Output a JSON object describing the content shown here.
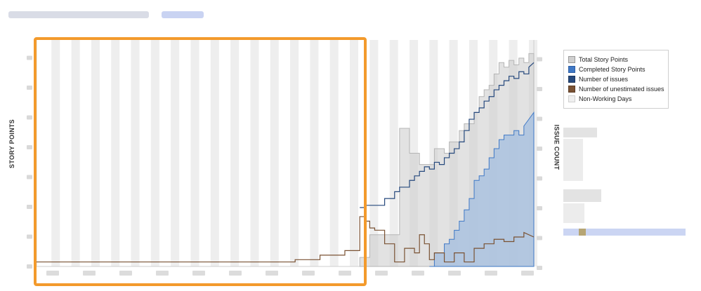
{
  "header": {
    "blurred_breadcrumb": "",
    "blurred_link": ""
  },
  "chart_data": {
    "type": "line",
    "title": "",
    "ylabel": "STORY POINTS",
    "y2label": "ISSUE COUNT",
    "xlabel": "",
    "grid": true,
    "legend_position": "right",
    "legend": [
      {
        "label": "Total Story Points",
        "color": "#cfcfcf"
      },
      {
        "label": "Completed Story Points",
        "color": "#3f78c5"
      },
      {
        "label": "Number of issues",
        "color": "#26497d"
      },
      {
        "label": "Number of unestimated issues",
        "color": "#7a5233"
      },
      {
        "label": "Non-Working Days",
        "color": "#f0f0f0"
      }
    ],
    "xlim": [
      0,
      100
    ],
    "ylim": [
      0,
      100
    ],
    "y2lim": [
      0,
      100
    ],
    "non_working_days": [
      3,
      7,
      11,
      15,
      19,
      23,
      27,
      31,
      35,
      39,
      43,
      47,
      51,
      55,
      59,
      63,
      67,
      71,
      75,
      79,
      83,
      87,
      91,
      95,
      99
    ],
    "series": [
      {
        "name": "Total Story Points",
        "type": "area",
        "color": "#cfcfcf",
        "x": [
          65,
          67,
          67,
          73,
          73,
          75,
          75,
          77,
          77,
          80,
          80,
          82,
          82,
          83,
          83,
          85,
          85,
          86,
          86,
          88,
          88,
          89,
          89,
          90,
          90,
          91,
          91,
          92,
          92,
          93,
          93,
          94,
          94,
          95,
          95,
          96,
          96,
          97,
          97,
          98,
          98,
          99,
          99,
          100
        ],
        "y": [
          4,
          4,
          14,
          14,
          61,
          61,
          50,
          50,
          45,
          45,
          52,
          52,
          50,
          50,
          55,
          55,
          60,
          60,
          63,
          63,
          68,
          68,
          75,
          75,
          78,
          78,
          80,
          80,
          85,
          85,
          90,
          90,
          88,
          88,
          91,
          91,
          89,
          89,
          92,
          92,
          90,
          90,
          94,
          94
        ]
      },
      {
        "name": "Completed Story Points",
        "type": "area",
        "color": "#a8c1e0",
        "x": [
          79,
          80,
          80,
          82,
          82,
          83,
          83,
          84,
          84,
          85,
          85,
          86,
          86,
          87,
          87,
          88,
          88,
          89,
          89,
          90,
          90,
          91,
          91,
          92,
          92,
          93,
          93,
          94,
          94,
          96,
          96,
          97,
          97,
          98,
          98,
          100
        ],
        "y": [
          0,
          0,
          6,
          6,
          10,
          10,
          12,
          12,
          16,
          16,
          20,
          20,
          25,
          25,
          30,
          30,
          38,
          38,
          40,
          40,
          43,
          43,
          48,
          48,
          52,
          52,
          56,
          56,
          58,
          58,
          60,
          60,
          58,
          58,
          62,
          68
        ]
      },
      {
        "name": "Number of issues",
        "type": "step",
        "color": "#26497d",
        "x": [
          65,
          66,
          66,
          70,
          70,
          72,
          72,
          73,
          73,
          75,
          75,
          76,
          76,
          77,
          77,
          78,
          78,
          79,
          79,
          80,
          80,
          81,
          81,
          82,
          82,
          83,
          83,
          84,
          84,
          85,
          85,
          86,
          86,
          87,
          87,
          88,
          88,
          89,
          89,
          90,
          90,
          91,
          91,
          92,
          92,
          93,
          93,
          94,
          94,
          95,
          95,
          96,
          96,
          97,
          97,
          98,
          98,
          99,
          99,
          100
        ],
        "y": [
          26,
          26,
          27,
          27,
          30,
          30,
          33,
          33,
          35,
          35,
          38,
          38,
          40,
          40,
          42,
          42,
          44,
          44,
          43,
          43,
          46,
          46,
          45,
          45,
          48,
          48,
          50,
          50,
          52,
          52,
          55,
          55,
          60,
          60,
          65,
          65,
          68,
          68,
          70,
          70,
          73,
          73,
          75,
          75,
          78,
          78,
          80,
          80,
          82,
          82,
          84,
          84,
          83,
          83,
          86,
          86,
          85,
          85,
          88,
          90
        ]
      },
      {
        "name": "Number of unestimated issues",
        "type": "step",
        "color": "#7a5233",
        "x": [
          0,
          52,
          52,
          57,
          57,
          62,
          62,
          65,
          65,
          66,
          66,
          67,
          67,
          68,
          68,
          70,
          70,
          72,
          72,
          74,
          74,
          76,
          76,
          77,
          77,
          78,
          78,
          79,
          79,
          80,
          80,
          82,
          82,
          84,
          84,
          86,
          86,
          88,
          88,
          90,
          90,
          92,
          92,
          94,
          94,
          96,
          96,
          98,
          98,
          100
        ],
        "y": [
          2,
          2,
          3,
          3,
          5,
          5,
          7,
          7,
          22,
          22,
          20,
          20,
          17,
          17,
          16,
          16,
          10,
          10,
          2,
          2,
          8,
          8,
          6,
          6,
          14,
          14,
          10,
          10,
          3,
          3,
          6,
          6,
          2,
          2,
          6,
          6,
          2,
          2,
          8,
          8,
          10,
          10,
          12,
          12,
          11,
          11,
          13,
          13,
          15,
          13
        ]
      }
    ]
  },
  "highlight": {
    "color": "#f39a2c",
    "description_visible": false
  },
  "side_panel": {
    "blurred": true
  }
}
